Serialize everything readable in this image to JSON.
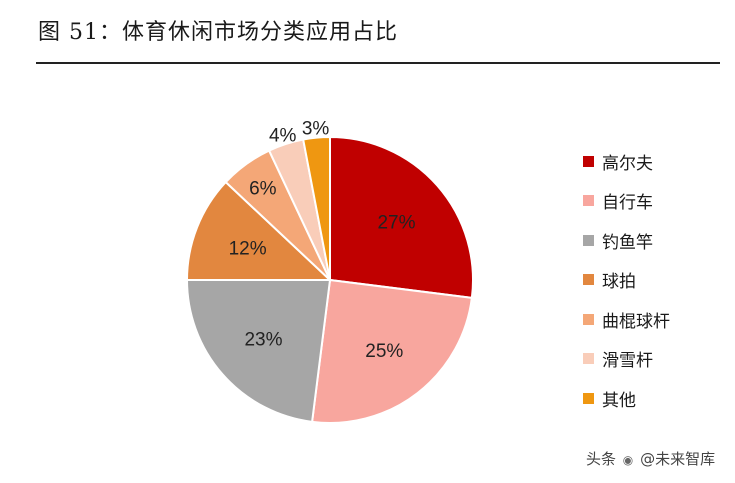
{
  "title": "图 51：体育休闲市场分类应用占比",
  "chart_data": {
    "type": "pie",
    "categories": [
      "高尔夫",
      "自行车",
      "钓鱼竿",
      "球拍",
      "曲棍球杆",
      "滑雪杆",
      "其他"
    ],
    "values": [
      27,
      25,
      23,
      12,
      6,
      4,
      3
    ],
    "labels": [
      "27%",
      "25%",
      "23%",
      "12%",
      "6%",
      "4%",
      "3%"
    ],
    "colors": [
      "#C00000",
      "#F8A69E",
      "#A6A6A6",
      "#E2873F",
      "#F4A777",
      "#F9CDB9",
      "#EF9711"
    ],
    "start": "12 o'clock",
    "direction": "clockwise",
    "legend_position": "right"
  },
  "watermark": {
    "prefix": "头条",
    "icon": "wechat-icon",
    "text": "@未来智库"
  }
}
